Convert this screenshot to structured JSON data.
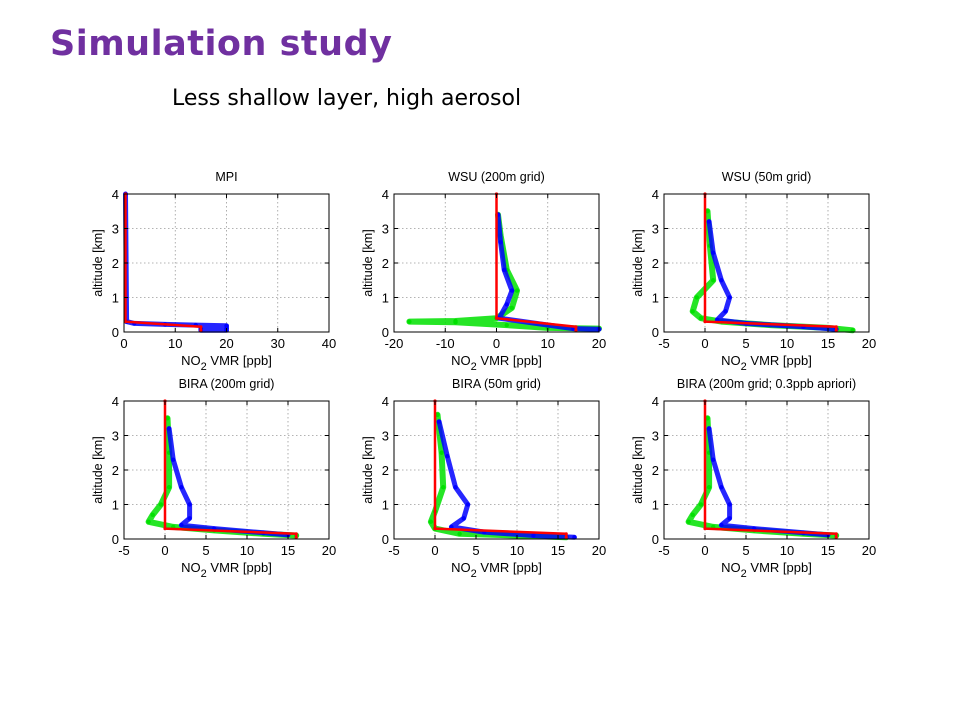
{
  "slide": {
    "title": "Simulation study",
    "subtitle": "Less shallow layer, high aerosol"
  },
  "colors": {
    "title": "#7030a0",
    "series_blue": "#0000ff",
    "series_green": "#00e000",
    "series_red": "#ff0000",
    "series_black": "#000000",
    "series_yellow": "#d8c000"
  },
  "chart_data": [
    {
      "type": "line",
      "title": "MPI",
      "xlabel": "NO2 VMR [ppb]",
      "ylabel": "altitude [km]",
      "xlim": [
        0,
        40
      ],
      "ylim": [
        0,
        4
      ],
      "xticks": [
        0,
        10,
        20,
        30,
        40
      ],
      "yticks": [
        0,
        1,
        2,
        3,
        4
      ],
      "grid": true,
      "series": [
        {
          "color": "blue",
          "x": [
            0.3,
            0.5,
            2,
            8,
            14,
            20,
            20,
            15,
            15,
            20
          ],
          "y": [
            4,
            0.3,
            0.25,
            0.22,
            0.2,
            0.18,
            0.1,
            0.1,
            0.05,
            0.05
          ]
        },
        {
          "color": "red",
          "x": [
            0.3,
            0.3,
            15,
            15
          ],
          "y": [
            4,
            0.3,
            0.15,
            0.05
          ]
        }
      ]
    },
    {
      "type": "line",
      "title": "WSU (200m grid)",
      "xlabel": "NO2 VMR [ppb]",
      "ylabel": "altitude [km]",
      "xlim": [
        -20,
        20
      ],
      "ylim": [
        0,
        4
      ],
      "xticks": [
        -20,
        -10,
        0,
        10,
        20
      ],
      "yticks": [
        0,
        1,
        2,
        3,
        4
      ],
      "grid": true,
      "series": [
        {
          "color": "green",
          "x": [
            0.3,
            0.8,
            2,
            4,
            3,
            0,
            -8,
            -17,
            -8,
            2,
            10,
            20
          ],
          "y": [
            3.4,
            2.8,
            1.8,
            1.2,
            0.7,
            0.4,
            0.32,
            0.3,
            0.28,
            0.2,
            0.12,
            0.1
          ]
        },
        {
          "color": "blue",
          "x": [
            0.3,
            0.8,
            1.5,
            3,
            2,
            0.5,
            15,
            20
          ],
          "y": [
            3.4,
            2.6,
            1.8,
            1.2,
            0.8,
            0.4,
            0.1,
            0.08
          ]
        },
        {
          "color": "red",
          "x": [
            0,
            0,
            15.5,
            15.5
          ],
          "y": [
            4,
            0.4,
            0.15,
            0.05
          ]
        }
      ]
    },
    {
      "type": "line",
      "title": "WSU (50m grid)",
      "xlabel": "NO2 VMR [ppb]",
      "ylabel": "altitude [km]",
      "xlim": [
        -5,
        20
      ],
      "ylim": [
        0,
        4
      ],
      "xticks": [
        -5,
        0,
        5,
        10,
        15,
        20
      ],
      "yticks": [
        0,
        1,
        2,
        3,
        4
      ],
      "grid": true,
      "series": [
        {
          "color": "green",
          "x": [
            0.3,
            0.6,
            1,
            -1,
            -1.5,
            -0.5,
            2,
            8,
            15,
            18
          ],
          "y": [
            3.5,
            2.5,
            1.5,
            1,
            0.6,
            0.4,
            0.3,
            0.2,
            0.12,
            0.05
          ]
        },
        {
          "color": "blue",
          "x": [
            0.5,
            1,
            2,
            3,
            2.5,
            1.5,
            5,
            12,
            16
          ],
          "y": [
            3.2,
            2.3,
            1.5,
            1,
            0.6,
            0.35,
            0.25,
            0.15,
            0.08
          ]
        },
        {
          "color": "red",
          "x": [
            0,
            0,
            16,
            16
          ],
          "y": [
            4,
            0.3,
            0.15,
            0.05
          ]
        }
      ]
    },
    {
      "type": "line",
      "title": "BIRA (200m grid)",
      "xlabel": "NO2 VMR [ppb]",
      "ylabel": "altitude [km]",
      "xlim": [
        -5,
        20
      ],
      "ylim": [
        0,
        4
      ],
      "xticks": [
        -5,
        0,
        5,
        10,
        15,
        20
      ],
      "yticks": [
        0,
        1,
        2,
        3,
        4
      ],
      "grid": true,
      "series": [
        {
          "color": "green",
          "x": [
            0.3,
            0.5,
            0.5,
            -0.5,
            -1.5,
            -2,
            1,
            6,
            12,
            16
          ],
          "y": [
            3.5,
            2.5,
            1.5,
            1,
            0.7,
            0.5,
            0.35,
            0.25,
            0.15,
            0.1
          ]
        },
        {
          "color": "blue",
          "x": [
            0.5,
            1,
            2,
            3,
            3,
            2,
            6,
            12,
            15
          ],
          "y": [
            3.2,
            2.3,
            1.5,
            1,
            0.6,
            0.4,
            0.3,
            0.18,
            0.12
          ]
        },
        {
          "color": "red",
          "x": [
            0,
            0,
            16,
            16
          ],
          "y": [
            4,
            0.3,
            0.15,
            0.05
          ]
        }
      ]
    },
    {
      "type": "line",
      "title": "BIRA (50m grid)",
      "xlabel": "NO2 VMR [ppb]",
      "ylabel": "altitude [km]",
      "xlim": [
        -5,
        20
      ],
      "ylim": [
        0,
        4
      ],
      "xticks": [
        -5,
        0,
        5,
        10,
        15,
        20
      ],
      "yticks": [
        0,
        1,
        2,
        3,
        4
      ],
      "grid": true,
      "series": [
        {
          "color": "green",
          "x": [
            0.3,
            0.8,
            1,
            0,
            -0.5,
            0,
            3,
            10,
            16
          ],
          "y": [
            3.6,
            2.5,
            1.5,
            0.8,
            0.5,
            0.3,
            0.15,
            0.1,
            0.05
          ]
        },
        {
          "color": "blue",
          "x": [
            0.5,
            1.5,
            2.5,
            4,
            3.5,
            2,
            6,
            12,
            17
          ],
          "y": [
            3.4,
            2.4,
            1.5,
            1,
            0.6,
            0.35,
            0.2,
            0.1,
            0.05
          ]
        },
        {
          "color": "red",
          "x": [
            0,
            0,
            16,
            16
          ],
          "y": [
            4,
            0.3,
            0.15,
            0.05
          ]
        }
      ]
    },
    {
      "type": "line",
      "title": "BIRA (200m grid; 0.3ppb apriori)",
      "xlabel": "NO2 VMR [ppb]",
      "ylabel": "altitude [km]",
      "xlim": [
        -5,
        20
      ],
      "ylim": [
        0,
        4
      ],
      "xticks": [
        -5,
        0,
        5,
        10,
        15,
        20
      ],
      "yticks": [
        0,
        1,
        2,
        3,
        4
      ],
      "grid": true,
      "series": [
        {
          "color": "green",
          "x": [
            0.3,
            0.5,
            0.5,
            -0.5,
            -1.5,
            -2,
            1,
            6,
            12,
            16
          ],
          "y": [
            3.5,
            2.5,
            1.5,
            1,
            0.7,
            0.5,
            0.35,
            0.25,
            0.15,
            0.1
          ]
        },
        {
          "color": "blue",
          "x": [
            0.5,
            1,
            2,
            3,
            3,
            2,
            6,
            12,
            15
          ],
          "y": [
            3.2,
            2.3,
            1.5,
            1,
            0.6,
            0.4,
            0.3,
            0.18,
            0.12
          ]
        },
        {
          "color": "red",
          "x": [
            0,
            0,
            16,
            16
          ],
          "y": [
            4,
            0.3,
            0.15,
            0.05
          ]
        }
      ]
    }
  ]
}
